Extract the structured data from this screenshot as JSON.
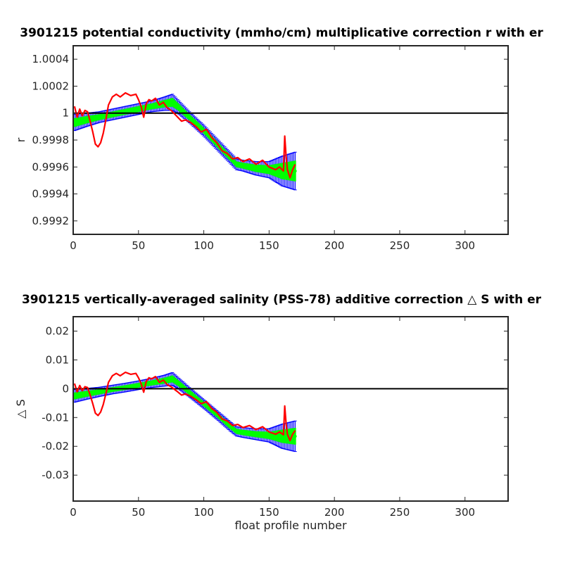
{
  "colors": {
    "errorbar": "#0000ff",
    "fit": "#00ff00",
    "raw": "#ff0000",
    "reference": "#000000",
    "axes": "#262626"
  },
  "chart_data": [
    {
      "type": "line",
      "title": "3901215 potential conductivity (mmho/cm) multiplicative correction r with er",
      "xlabel": "",
      "ylabel": "r",
      "xlim": [
        0,
        333
      ],
      "ylim": [
        0.9991,
        1.0005
      ],
      "xticks": [
        0,
        50,
        100,
        150,
        200,
        250,
        300
      ],
      "xticklabels": [
        "0",
        "50",
        "100",
        "150",
        "200",
        "250",
        "300"
      ],
      "yticks": [
        0.9992,
        0.9994,
        0.9996,
        0.9998,
        1.0,
        1.0002,
        1.0004
      ],
      "yticklabels": [
        "0.9992",
        "0.9994",
        "0.9996",
        "0.9998",
        "1",
        "1.0002",
        "1.0004"
      ],
      "reference_line": 1.0,
      "fit_x": [
        1,
        10,
        20,
        30,
        40,
        50,
        60,
        70,
        76,
        80,
        90,
        100,
        110,
        120,
        125,
        130,
        140,
        150,
        160,
        170
      ],
      "fit_y": [
        0.99993,
        0.99995,
        0.99997,
        0.99999,
        1.00001,
        1.00003,
        1.00005,
        1.00007,
        1.00008,
        1.00005,
        0.99996,
        0.99987,
        0.99977,
        0.99967,
        0.99962,
        0.99961,
        0.99959,
        0.99958,
        0.99957,
        0.99957
      ],
      "error_half_width": [
        6e-05,
        5e-05,
        4e-05,
        4e-05,
        4e-05,
        4e-05,
        4e-05,
        5e-05,
        6e-05,
        5e-05,
        4e-05,
        4e-05,
        4e-05,
        4e-05,
        4e-05,
        4e-05,
        5e-05,
        6e-05,
        0.00011,
        0.00014
      ],
      "raw_x": [
        1,
        3,
        5,
        7,
        9,
        11,
        13,
        15,
        17,
        19,
        21,
        23,
        25,
        27,
        30,
        33,
        36,
        40,
        44,
        48,
        50,
        52,
        54,
        56,
        58,
        60,
        63,
        66,
        69,
        72,
        75,
        78,
        80,
        83,
        86,
        90,
        94,
        98,
        102,
        106,
        110,
        114,
        118,
        122,
        126,
        130,
        135,
        140,
        145,
        150,
        155,
        158,
        161,
        162,
        163,
        164,
        166,
        168,
        170
      ],
      "raw_y": [
        1.00005,
        0.99997,
        1.00003,
        0.99998,
        1.00002,
        1.00001,
        0.99994,
        0.99986,
        0.99977,
        0.99975,
        0.99978,
        0.99985,
        0.99995,
        1.00006,
        1.00012,
        1.00014,
        1.00012,
        1.00015,
        1.00013,
        1.00014,
        1.0001,
        1.00005,
        0.99997,
        1.00007,
        1.0001,
        1.00009,
        1.00011,
        1.00006,
        1.00008,
        1.00004,
        1.00002,
        0.99999,
        0.99997,
        0.99994,
        0.99995,
        0.99993,
        0.9999,
        0.99986,
        0.99988,
        0.99982,
        0.99978,
        0.99972,
        0.9997,
        0.99966,
        0.99967,
        0.99964,
        0.99966,
        0.99962,
        0.99965,
        0.9996,
        0.99958,
        0.9996,
        0.99957,
        0.99983,
        0.99968,
        0.99958,
        0.99952,
        0.99958,
        0.99962
      ]
    },
    {
      "type": "line",
      "title": "3901215 vertically-averaged salinity (PSS-78) additive correction △ S with er",
      "xlabel": "float profile number",
      "ylabel": "△ S",
      "xlim": [
        0,
        333
      ],
      "ylim": [
        -0.039,
        0.025
      ],
      "xticks": [
        0,
        50,
        100,
        150,
        200,
        250,
        300
      ],
      "xticklabels": [
        "0",
        "50",
        "100",
        "150",
        "200",
        "250",
        "300"
      ],
      "yticks": [
        -0.03,
        -0.02,
        -0.01,
        0,
        0.01,
        0.02
      ],
      "yticklabels": [
        "-0.03",
        "-0.02",
        "-0.01",
        "0",
        "0.01",
        "0.02"
      ],
      "reference_line": 0,
      "fit_x": [
        1,
        10,
        20,
        30,
        40,
        50,
        60,
        70,
        76,
        80,
        90,
        100,
        110,
        120,
        125,
        130,
        140,
        150,
        160,
        170
      ],
      "fit_y": [
        -0.0025,
        -0.0018,
        -0.0011,
        -0.0003,
        0.0004,
        0.0012,
        0.002,
        0.0028,
        0.0034,
        0.0021,
        -0.0016,
        -0.0053,
        -0.0091,
        -0.013,
        -0.0148,
        -0.0152,
        -0.0158,
        -0.0162,
        -0.0165,
        -0.0165
      ],
      "error_half_width": [
        0.0022,
        0.0019,
        0.0016,
        0.0015,
        0.0015,
        0.0015,
        0.0016,
        0.0019,
        0.0022,
        0.0019,
        0.0016,
        0.0015,
        0.0015,
        0.0016,
        0.0016,
        0.0017,
        0.0019,
        0.0023,
        0.0042,
        0.0053
      ],
      "raw_x": [
        1,
        3,
        5,
        7,
        9,
        11,
        13,
        15,
        17,
        19,
        21,
        23,
        25,
        27,
        30,
        33,
        36,
        40,
        44,
        48,
        50,
        52,
        54,
        56,
        58,
        60,
        63,
        66,
        69,
        72,
        75,
        78,
        80,
        83,
        86,
        90,
        94,
        98,
        102,
        106,
        110,
        114,
        118,
        122,
        126,
        130,
        135,
        140,
        145,
        150,
        155,
        158,
        161,
        162,
        163,
        164,
        166,
        168,
        170
      ],
      "raw_y": [
        0.0018,
        -0.0011,
        0.0011,
        -0.0007,
        0.0007,
        0.0004,
        -0.0022,
        -0.0052,
        -0.0085,
        -0.0093,
        -0.0081,
        -0.0055,
        -0.0018,
        0.0022,
        0.0045,
        0.0053,
        0.0045,
        0.0057,
        0.005,
        0.0053,
        0.0038,
        0.0018,
        -0.0012,
        0.0026,
        0.0038,
        0.0034,
        0.0042,
        0.0022,
        0.003,
        0.0014,
        0.0007,
        -0.0004,
        -0.0011,
        -0.0022,
        -0.0018,
        -0.0026,
        -0.0038,
        -0.0052,
        -0.0045,
        -0.0068,
        -0.0082,
        -0.0105,
        -0.0112,
        -0.0128,
        -0.0124,
        -0.0135,
        -0.0128,
        -0.0142,
        -0.0132,
        -0.015,
        -0.0158,
        -0.015,
        -0.016,
        -0.006,
        -0.012,
        -0.0158,
        -0.018,
        -0.0158,
        -0.0145
      ]
    }
  ]
}
